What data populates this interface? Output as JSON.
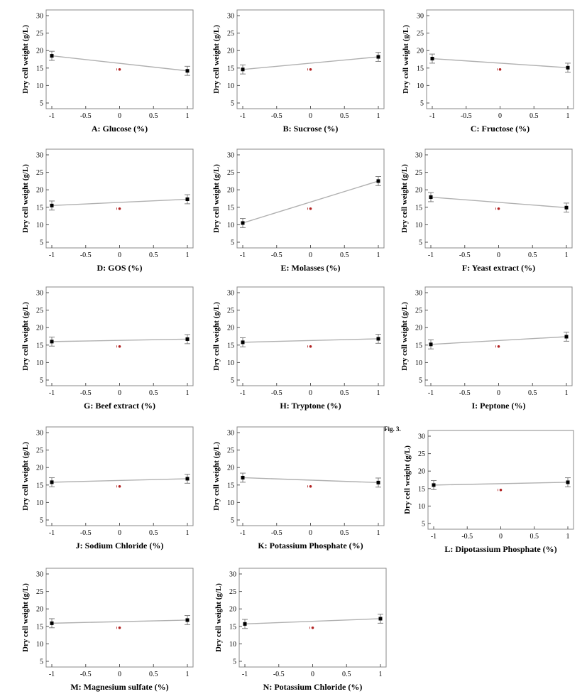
{
  "figure_label": "Fig. 3.",
  "colors": {
    "line": "#b0b0b0",
    "point": "#000000",
    "center_point": "#b22222",
    "error_bar": "#808080",
    "frame": "#888888"
  },
  "chart_data": [
    {
      "type": "line",
      "xlabel": "A: Glucose (%)",
      "ylabel": "Dry cell weight (g/L)",
      "x": [
        -1,
        1
      ],
      "values": [
        18.5,
        14.2
      ],
      "error": [
        1.3,
        1.3
      ],
      "center": {
        "x": 0,
        "value": 14.6
      },
      "xticks": [
        "-1",
        "-0.5",
        "0",
        "0.5",
        "1"
      ],
      "yticks": [
        "5",
        "10",
        "15",
        "20",
        "25",
        "30"
      ],
      "xlim": [
        -1,
        1
      ],
      "ylim": [
        5,
        30
      ]
    },
    {
      "type": "line",
      "xlabel": "B: Sucrose (%)",
      "ylabel": "Dry cell weight (g/L)",
      "x": [
        -1,
        1
      ],
      "values": [
        14.6,
        18.2
      ],
      "error": [
        1.3,
        1.3
      ],
      "center": {
        "x": 0,
        "value": 14.6
      },
      "xticks": [
        "-1",
        "-0.5",
        "0",
        "0.5",
        "1"
      ],
      "yticks": [
        "5",
        "10",
        "15",
        "20",
        "25",
        "30"
      ],
      "xlim": [
        -1,
        1
      ],
      "ylim": [
        5,
        30
      ]
    },
    {
      "type": "line",
      "xlabel": "C: Fructose (%)",
      "ylabel": "Dry cell weight (g/L)",
      "x": [
        -1,
        1
      ],
      "values": [
        17.7,
        15.1
      ],
      "error": [
        1.3,
        1.3
      ],
      "center": {
        "x": 0,
        "value": 14.6
      },
      "xticks": [
        "-1",
        "-0.5",
        "0",
        "0.5",
        "1"
      ],
      "yticks": [
        "5",
        "10",
        "15",
        "20",
        "25",
        "30"
      ],
      "xlim": [
        -1,
        1
      ],
      "ylim": [
        5,
        30
      ]
    },
    {
      "type": "line",
      "xlabel": "D: GOS (%)",
      "ylabel": "Dry cell weight (g/L)",
      "x": [
        -1,
        1
      ],
      "values": [
        15.5,
        17.3
      ],
      "error": [
        1.3,
        1.3
      ],
      "center": {
        "x": 0,
        "value": 14.6
      },
      "xticks": [
        "-1",
        "-0.5",
        "0",
        "0.5",
        "1"
      ],
      "yticks": [
        "5",
        "10",
        "15",
        "20",
        "25",
        "30"
      ],
      "xlim": [
        -1,
        1
      ],
      "ylim": [
        5,
        30
      ]
    },
    {
      "type": "line",
      "xlabel": "E: Molasses (%)",
      "ylabel": "Dry cell weight (g/L)",
      "x": [
        -1,
        1
      ],
      "values": [
        10.5,
        22.5
      ],
      "error": [
        1.3,
        1.3
      ],
      "center": {
        "x": 0,
        "value": 14.6
      },
      "xticks": [
        "-1",
        "-0.5",
        "0",
        "0.5",
        "1"
      ],
      "yticks": [
        "5",
        "10",
        "15",
        "20",
        "25",
        "30"
      ],
      "xlim": [
        -1,
        1
      ],
      "ylim": [
        5,
        30
      ]
    },
    {
      "type": "line",
      "xlabel": "F: Yeast extract (%)",
      "ylabel": "Dry cell weight (g/L)",
      "x": [
        -1,
        1
      ],
      "values": [
        17.9,
        14.9
      ],
      "error": [
        1.3,
        1.3
      ],
      "center": {
        "x": 0,
        "value": 14.6
      },
      "xticks": [
        "-1",
        "-0.5",
        "0",
        "0.5",
        "1"
      ],
      "yticks": [
        "5",
        "10",
        "15",
        "20",
        "25",
        "30"
      ],
      "xlim": [
        -1,
        1
      ],
      "ylim": [
        5,
        30
      ]
    },
    {
      "type": "line",
      "xlabel": "G: Beef extract (%)",
      "ylabel": "Dry cell weight (g/L)",
      "x": [
        -1,
        1
      ],
      "values": [
        16.0,
        16.7
      ],
      "error": [
        1.3,
        1.3
      ],
      "center": {
        "x": 0,
        "value": 14.6
      },
      "xticks": [
        "-1",
        "-0.5",
        "0",
        "0.5",
        "1"
      ],
      "yticks": [
        "5",
        "10",
        "15",
        "20",
        "25",
        "30"
      ],
      "xlim": [
        -1,
        1
      ],
      "ylim": [
        5,
        30
      ]
    },
    {
      "type": "line",
      "xlabel": "H: Tryptone (%)",
      "ylabel": "Dry cell weight (g/L)",
      "x": [
        -1,
        1
      ],
      "values": [
        15.8,
        16.8
      ],
      "error": [
        1.3,
        1.3
      ],
      "center": {
        "x": 0,
        "value": 14.6
      },
      "xticks": [
        "-1",
        "-0.5",
        "0",
        "0.5",
        "1"
      ],
      "yticks": [
        "5",
        "10",
        "15",
        "20",
        "25",
        "30"
      ],
      "xlim": [
        -1,
        1
      ],
      "ylim": [
        5,
        30
      ]
    },
    {
      "type": "line",
      "xlabel": "I: Peptone (%)",
      "ylabel": "Dry cell weight (g/L)",
      "x": [
        -1,
        1
      ],
      "values": [
        15.2,
        17.4
      ],
      "error": [
        1.3,
        1.3
      ],
      "center": {
        "x": 0,
        "value": 14.6
      },
      "xticks": [
        "-1",
        "-0.5",
        "0",
        "0.5",
        "1"
      ],
      "yticks": [
        "5",
        "10",
        "15",
        "20",
        "25",
        "30"
      ],
      "xlim": [
        -1,
        1
      ],
      "ylim": [
        5,
        30
      ]
    },
    {
      "type": "line",
      "xlabel": "J: Sodium Chloride (%)",
      "ylabel": "Dry cell weight (g/L)",
      "x": [
        -1,
        1
      ],
      "values": [
        15.8,
        16.8
      ],
      "error": [
        1.3,
        1.3
      ],
      "center": {
        "x": 0,
        "value": 14.6
      },
      "xticks": [
        "-1",
        "-0.5",
        "0",
        "0.5",
        "1"
      ],
      "yticks": [
        "5",
        "10",
        "15",
        "20",
        "25",
        "30"
      ],
      "xlim": [
        -1,
        1
      ],
      "ylim": [
        5,
        30
      ]
    },
    {
      "type": "line",
      "xlabel": "K: Potassium Phosphate (%)",
      "ylabel": "Dry cell weight (g/L)",
      "x": [
        -1,
        1
      ],
      "values": [
        17.1,
        15.7
      ],
      "error": [
        1.3,
        1.3
      ],
      "center": {
        "x": 0,
        "value": 14.6
      },
      "xticks": [
        "-1",
        "-0.5",
        "0",
        "0.5",
        "1"
      ],
      "yticks": [
        "5",
        "10",
        "15",
        "20",
        "25",
        "30"
      ],
      "xlim": [
        -1,
        1
      ],
      "ylim": [
        5,
        30
      ]
    },
    {
      "type": "line",
      "xlabel": "L: Dipotassium Phosphate (%)",
      "ylabel": "Dry cell weight (g/L)",
      "x": [
        -1,
        1
      ],
      "values": [
        16.0,
        16.8
      ],
      "error": [
        1.3,
        1.3
      ],
      "center": {
        "x": 0,
        "value": 14.6
      },
      "xticks": [
        "-1",
        "-0.5",
        "0",
        "0.5",
        "1"
      ],
      "yticks": [
        "5",
        "10",
        "15",
        "20",
        "25",
        "30"
      ],
      "xlim": [
        -1,
        1
      ],
      "ylim": [
        5,
        30
      ]
    },
    {
      "type": "line",
      "xlabel": "M: Magnesium sulfate (%)",
      "ylabel": "Dry cell weight (g/L)",
      "x": [
        -1,
        1
      ],
      "values": [
        15.9,
        16.8
      ],
      "error": [
        1.3,
        1.3
      ],
      "center": {
        "x": 0,
        "value": 14.6
      },
      "xticks": [
        "-1",
        "-0.5",
        "0",
        "0.5",
        "1"
      ],
      "yticks": [
        "5",
        "10",
        "15",
        "20",
        "25",
        "30"
      ],
      "xlim": [
        -1,
        1
      ],
      "ylim": [
        5,
        30
      ]
    },
    {
      "type": "line",
      "xlabel": "N: Potassium Chloride (%)",
      "ylabel": "Dry cell weight (g/L)",
      "x": [
        -1,
        1
      ],
      "values": [
        15.7,
        17.2
      ],
      "error": [
        1.3,
        1.3
      ],
      "center": {
        "x": 0,
        "value": 14.6
      },
      "xticks": [
        "-1",
        "-0.5",
        "0",
        "0.5",
        "1"
      ],
      "yticks": [
        "5",
        "10",
        "15",
        "20",
        "25",
        "30"
      ],
      "xlim": [
        -1,
        1
      ],
      "ylim": [
        5,
        30
      ]
    }
  ]
}
